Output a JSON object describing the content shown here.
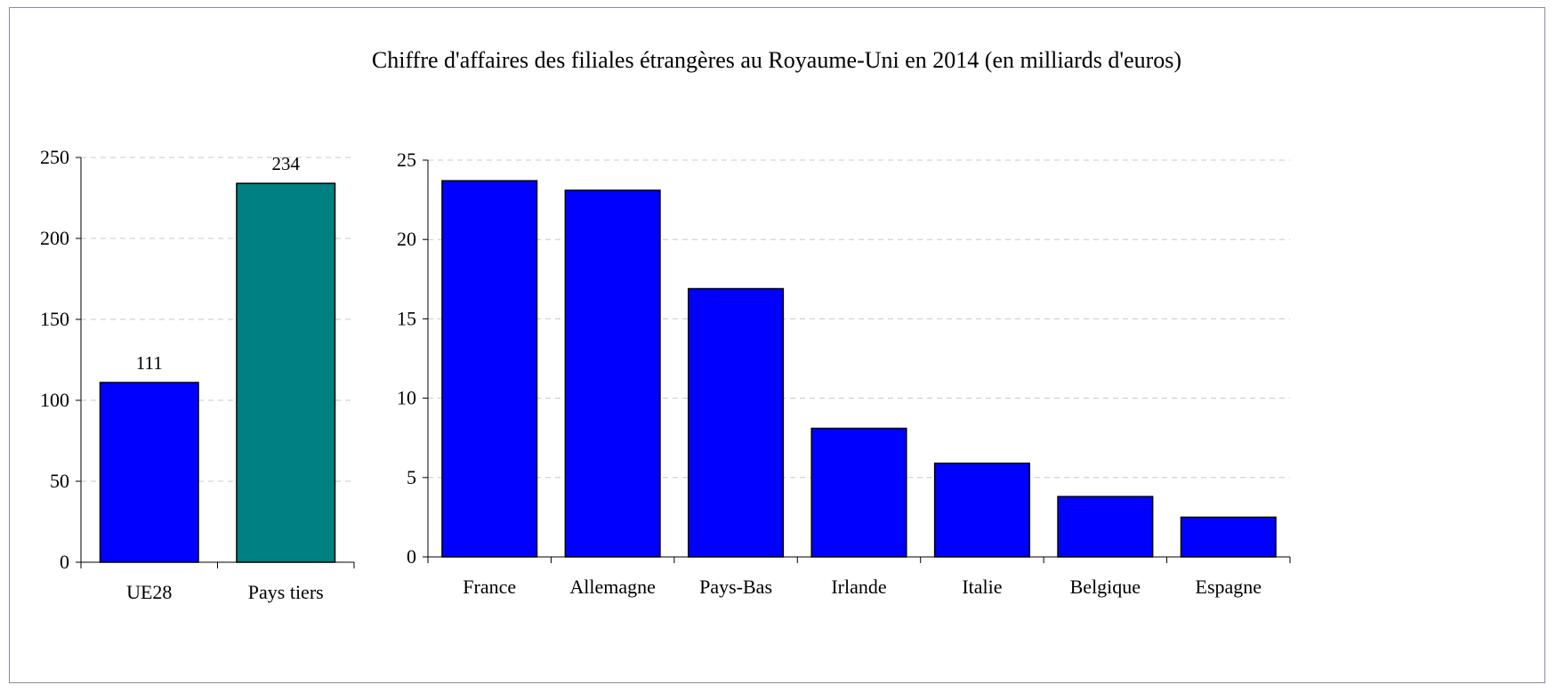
{
  "chart_data": [
    {
      "type": "bar",
      "title": "Chiffre d'affaires des filiales étrangères au Royaume-Uni en 2014 (en milliards d'euros)",
      "categories": [
        "UE28",
        "Pays tiers"
      ],
      "values": [
        111,
        234
      ],
      "data_labels": [
        "111",
        "234"
      ],
      "bar_colors": [
        "#0000ff",
        "#008080"
      ],
      "ylim": [
        0,
        250
      ],
      "yticks": [
        0,
        50,
        100,
        150,
        200,
        250
      ],
      "grid": true,
      "xlabel": "",
      "ylabel": ""
    },
    {
      "type": "bar",
      "categories": [
        "France",
        "Allemagne",
        "Pays-Bas",
        "Irlande",
        "Italie",
        "Belgique",
        "Espagne"
      ],
      "values": [
        23.7,
        23.1,
        16.9,
        8.1,
        5.9,
        3.8,
        2.5
      ],
      "bar_colors": [
        "#0000ff",
        "#0000ff",
        "#0000ff",
        "#0000ff",
        "#0000ff",
        "#0000ff",
        "#0000ff"
      ],
      "ylim": [
        0,
        25
      ],
      "yticks": [
        0,
        5,
        10,
        15,
        20,
        25
      ],
      "grid": true,
      "xlabel": "",
      "ylabel": ""
    }
  ]
}
